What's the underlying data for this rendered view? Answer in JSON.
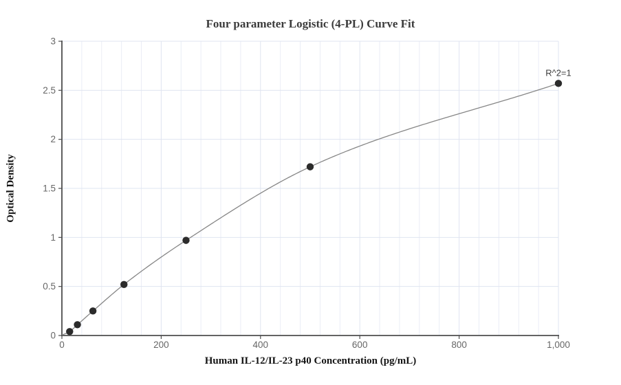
{
  "chart_data": {
    "type": "scatter",
    "title": "Four parameter Logistic (4-PL) Curve Fit",
    "xlabel": "Human IL-12/IL-23 p40 Concentration (pg/mL)",
    "ylabel": "Optical Density",
    "xlim": [
      0,
      1000
    ],
    "ylim": [
      0,
      3
    ],
    "grid": true,
    "legend_position": "none",
    "x_ticks": [
      {
        "v": 0,
        "label": "0"
      },
      {
        "v": 200,
        "label": "200"
      },
      {
        "v": 400,
        "label": "400"
      },
      {
        "v": 600,
        "label": "600"
      },
      {
        "v": 800,
        "label": "800"
      },
      {
        "v": 1000,
        "label": "1,000"
      }
    ],
    "x_minor_step": 40,
    "y_ticks": [
      {
        "v": 0,
        "label": "0"
      },
      {
        "v": 0.5,
        "label": "0.5"
      },
      {
        "v": 1,
        "label": "1"
      },
      {
        "v": 1.5,
        "label": "1.5"
      },
      {
        "v": 2,
        "label": "2"
      },
      {
        "v": 2.5,
        "label": "2.5"
      },
      {
        "v": 3,
        "label": "3"
      }
    ],
    "series": [
      {
        "name": "standard-curve",
        "points": [
          {
            "x": 15.625,
            "y": 0.04
          },
          {
            "x": 31.25,
            "y": 0.11
          },
          {
            "x": 62.5,
            "y": 0.25
          },
          {
            "x": 125,
            "y": 0.52
          },
          {
            "x": 250,
            "y": 0.97
          },
          {
            "x": 500,
            "y": 1.72
          },
          {
            "x": 1000,
            "y": 2.57
          }
        ],
        "curve_anchor_start": {
          "x": 0,
          "y": 0.005
        }
      }
    ],
    "annotation": {
      "text": "R^2=1",
      "x": 1000,
      "y": 2.57,
      "dx": 0,
      "dy": -11
    },
    "colors": {
      "background": "#ffffff",
      "curve": "#868686",
      "point": "#2b2b2b",
      "grid_minor": "#eaedf6",
      "grid_major": "#dfe4f0",
      "axis": "#4d4d4d",
      "tick_label": "#666666",
      "title": "#3b3b3b",
      "axis_label": "#141414",
      "annotation": "#3d3d3d"
    }
  }
}
